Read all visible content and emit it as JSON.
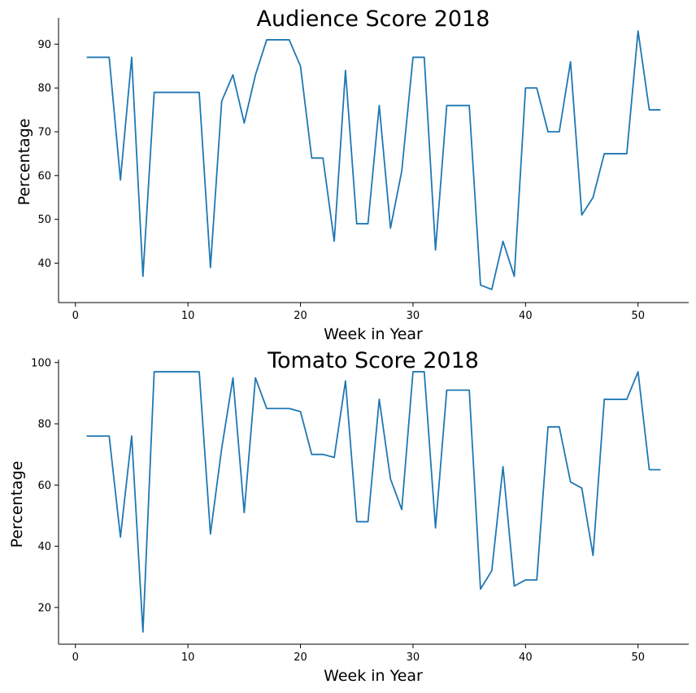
{
  "chart_data": [
    {
      "type": "line",
      "title": "Audience Score 2018",
      "xlabel": "Week in Year",
      "ylabel": "Percentage",
      "xlim": [
        -1.5,
        54.5
      ],
      "ylim": [
        31,
        96
      ],
      "xticks": [
        0,
        10,
        20,
        30,
        40,
        50
      ],
      "yticks": [
        40,
        50,
        60,
        70,
        80,
        90
      ],
      "grid": false,
      "line_color": "#1f77b4",
      "series": [
        {
          "x": [
            1,
            2,
            3,
            4,
            5,
            6,
            7,
            8,
            9,
            10,
            11,
            12,
            13,
            14,
            15,
            16,
            17,
            18,
            19,
            20,
            21,
            22,
            23,
            24,
            25,
            26,
            27,
            28,
            29,
            30,
            31,
            32,
            33,
            34,
            35,
            36,
            37,
            38,
            39,
            40,
            41,
            42,
            43,
            44,
            45,
            46,
            47,
            48,
            49,
            50,
            51,
            52
          ],
          "values": [
            87,
            87,
            87,
            59,
            87,
            37,
            79,
            79,
            79,
            79,
            79,
            39,
            77,
            83,
            72,
            83,
            91,
            91,
            91,
            85,
            64,
            64,
            45,
            84,
            49,
            49,
            76,
            48,
            61,
            87,
            87,
            43,
            76,
            76,
            76,
            35,
            34,
            45,
            37,
            80,
            80,
            70,
            70,
            86,
            51,
            55,
            65,
            65,
            65,
            93,
            75,
            75
          ]
        }
      ]
    },
    {
      "type": "line",
      "title": "Tomato Score 2018",
      "xlabel": "Week in Year",
      "ylabel": "Percentage",
      "xlim": [
        -1.5,
        54.5
      ],
      "ylim": [
        8,
        101
      ],
      "xticks": [
        0,
        10,
        20,
        30,
        40,
        50
      ],
      "yticks": [
        20,
        40,
        60,
        80,
        100
      ],
      "grid": false,
      "line_color": "#1f77b4",
      "series": [
        {
          "x": [
            1,
            2,
            3,
            4,
            5,
            6,
            7,
            8,
            9,
            10,
            11,
            12,
            13,
            14,
            15,
            16,
            17,
            18,
            19,
            20,
            21,
            22,
            23,
            24,
            25,
            26,
            27,
            28,
            29,
            30,
            31,
            32,
            33,
            34,
            35,
            36,
            37,
            38,
            39,
            40,
            41,
            42,
            43,
            44,
            45,
            46,
            47,
            48,
            49,
            50,
            51,
            52
          ],
          "values": [
            76,
            76,
            76,
            43,
            76,
            12,
            97,
            97,
            97,
            97,
            97,
            44,
            72,
            95,
            51,
            95,
            85,
            85,
            85,
            84,
            70,
            70,
            69,
            94,
            48,
            48,
            88,
            62,
            52,
            97,
            97,
            46,
            91,
            91,
            91,
            26,
            32,
            66,
            27,
            29,
            29,
            79,
            79,
            61,
            59,
            37,
            88,
            88,
            88,
            97,
            65,
            65
          ]
        }
      ]
    }
  ]
}
